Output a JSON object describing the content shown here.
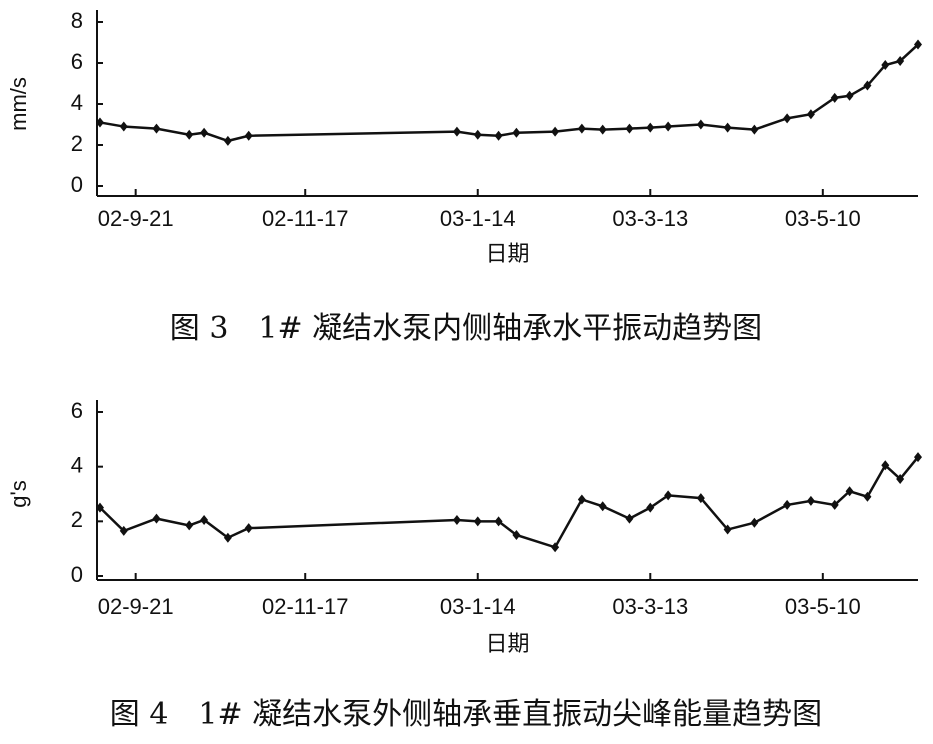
{
  "chart_data": [
    {
      "type": "line",
      "x_label": "日期",
      "y_label": "mm/s",
      "caption": "图 3　1# 凝结水泵内侧轴承水平振动趋势图",
      "x": [
        "02-9-9",
        "02-9-17",
        "02-9-28",
        "02-10-9",
        "02-10-14",
        "02-10-22",
        "02-10-29",
        "03-1-7",
        "03-1-14",
        "03-1-21",
        "03-1-27",
        "03-2-9",
        "03-2-18",
        "03-2-25",
        "03-3-6",
        "03-3-13",
        "03-3-19",
        "03-3-30",
        "03-4-8",
        "03-4-17",
        "03-4-28",
        "03-5-6",
        "03-5-14",
        "03-5-19",
        "03-5-25",
        "03-5-31",
        "03-6-5",
        "03-6-11"
      ],
      "series": [
        {
          "color": "#111111",
          "values": [
            3.1,
            2.9,
            2.8,
            2.5,
            2.6,
            2.2,
            2.45,
            2.65,
            2.5,
            2.45,
            2.6,
            2.65,
            2.8,
            2.75,
            2.8,
            2.85,
            2.9,
            3.0,
            2.85,
            2.75,
            3.3,
            3.5,
            4.3,
            4.4,
            4.9,
            5.9,
            6.1,
            6.9
          ]
        }
      ],
      "xlim": [
        "02-9-8",
        "03-6-11"
      ],
      "xticks": [
        "02-9-21",
        "02-11-17",
        "03-1-14",
        "03-3-13",
        "03-5-10"
      ],
      "ylim": [
        0,
        8
      ],
      "yticks": [
        0,
        2,
        4,
        6,
        8
      ]
    },
    {
      "type": "line",
      "x_label": "日期",
      "y_label": "g's",
      "caption": "图 4　1# 凝结水泵外侧轴承垂直振动尖峰能量趋势图",
      "x": [
        "02-9-9",
        "02-9-17",
        "02-9-28",
        "02-10-9",
        "02-10-14",
        "02-10-22",
        "02-10-29",
        "03-1-7",
        "03-1-14",
        "03-1-21",
        "03-1-27",
        "03-2-9",
        "03-2-18",
        "03-2-25",
        "03-3-6",
        "03-3-13",
        "03-3-19",
        "03-3-30",
        "03-4-8",
        "03-4-17",
        "03-4-28",
        "03-5-6",
        "03-5-14",
        "03-5-19",
        "03-5-25",
        "03-5-31",
        "03-6-5",
        "03-6-11"
      ],
      "series": [
        {
          "color": "#111111",
          "values": [
            2.5,
            1.65,
            2.1,
            1.85,
            2.05,
            1.4,
            1.75,
            2.05,
            2.0,
            2.0,
            1.5,
            1.05,
            2.8,
            2.55,
            2.1,
            2.5,
            2.95,
            2.85,
            1.7,
            1.95,
            2.6,
            2.75,
            2.6,
            3.1,
            2.9,
            4.05,
            3.55,
            4.35
          ]
        }
      ],
      "xlim": [
        "02-9-8",
        "03-6-11"
      ],
      "xticks": [
        "02-9-21",
        "02-11-17",
        "03-1-14",
        "03-3-13",
        "03-5-10"
      ],
      "ylim": [
        0,
        6
      ],
      "yticks": [
        0,
        2,
        4,
        6
      ]
    }
  ]
}
